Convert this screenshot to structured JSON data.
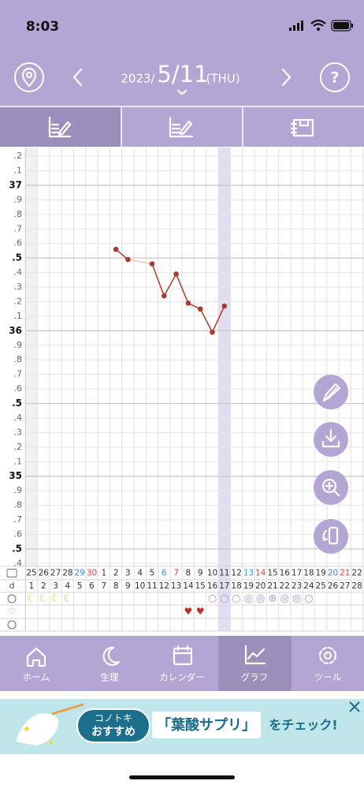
{
  "status_bar": {
    "time": "8:03"
  },
  "header": {
    "year": "2023/",
    "date": "5/11",
    "weekday": "(THU)"
  },
  "chart_data": {
    "type": "line",
    "categories": [
      "25",
      "26",
      "27",
      "28",
      "29",
      "30",
      "1",
      "2",
      "3",
      "4",
      "5",
      "6",
      "7",
      "8",
      "9",
      "10",
      "11",
      "12",
      "13",
      "14",
      "15",
      "16",
      "17",
      "18",
      "19",
      "20",
      "21",
      "22"
    ],
    "category_colors": [
      "#333",
      "#333",
      "#333",
      "#333",
      "#3a8fd6",
      "#e0413a",
      "#333",
      "#333",
      "#333",
      "#333",
      "#333",
      "#3a8fd6",
      "#e0413a",
      "#333",
      "#333",
      "#333",
      "#333",
      "#333",
      "#3a8fd6",
      "#e0413a",
      "#333",
      "#333",
      "#333",
      "#333",
      "#333",
      "#3a8fd6",
      "#e0413a",
      "#333"
    ],
    "cycle_day_label": "d",
    "cycle_days": [
      1,
      2,
      3,
      4,
      5,
      6,
      7,
      8,
      9,
      10,
      11,
      12,
      13,
      14,
      15,
      16,
      17,
      18,
      19,
      20,
      21,
      22,
      23,
      24,
      25,
      26,
      27,
      28
    ],
    "series": [
      {
        "color": "#b0392e",
        "values": [
          null,
          null,
          null,
          null,
          null,
          null,
          null,
          36.56,
          36.49,
          null,
          36.46,
          36.24,
          36.39,
          36.19,
          36.15,
          35.99,
          36.17,
          null,
          null,
          null,
          null,
          null,
          null,
          null,
          null,
          null,
          null,
          null
        ]
      }
    ],
    "gap_color": "#f2c4c4",
    "highlight_index": 16,
    "ylim": [
      34.38,
      37.26
    ],
    "yticks": [
      {
        "value": 37.2,
        "label": ".2"
      },
      {
        "value": 37.1,
        "label": ".1"
      },
      37,
      {
        "value": 36.9,
        "label": ".9"
      },
      {
        "value": 36.8,
        "label": ".8"
      },
      {
        "value": 36.7,
        "label": ".7"
      },
      {
        "value": 36.6,
        "label": ".6"
      },
      {
        "value": 36.5,
        "label": ".5"
      },
      {
        "value": 36.4,
        "label": ".4"
      },
      {
        "value": 36.3,
        "label": ".3"
      },
      {
        "value": 36.2,
        "label": ".2"
      },
      {
        "value": 36.1,
        "label": ".1"
      },
      36,
      {
        "value": 35.9,
        "label": ".9"
      },
      {
        "value": 35.8,
        "label": ".8"
      },
      {
        "value": 35.7,
        "label": ".7"
      },
      {
        "value": 35.6,
        "label": ".6"
      },
      {
        "value": 35.5,
        "label": ".5"
      },
      {
        "value": 35.4,
        "label": ".4"
      },
      {
        "value": 35.3,
        "label": ".3"
      },
      {
        "value": 35.2,
        "label": ".2"
      },
      {
        "value": 35.1,
        "label": ".1"
      },
      35,
      {
        "value": 34.9,
        "label": ".9"
      },
      {
        "value": 34.8,
        "label": ".8"
      },
      {
        "value": 34.7,
        "label": ".7"
      },
      {
        "value": 34.6,
        "label": ".6"
      },
      {
        "value": 34.5,
        "label": ".5"
      },
      {
        "value": 34.4,
        "label": ".4"
      }
    ],
    "grid": true,
    "period_marks": {
      "color": "#e8c53c",
      "symbols": [
        "☾",
        "☾",
        "☾",
        "☾",
        null,
        null,
        null,
        null,
        null,
        null,
        null,
        null,
        null,
        null,
        null,
        null,
        null,
        null,
        null,
        null,
        null,
        null,
        null,
        null,
        null,
        null,
        null,
        null
      ]
    },
    "ovulation_marks": {
      "color": "#a99bd0",
      "symbols": [
        null,
        null,
        null,
        null,
        null,
        null,
        null,
        null,
        null,
        null,
        null,
        null,
        null,
        null,
        null,
        "○",
        "○",
        "○",
        "◎",
        "◎",
        "⊛",
        "◎",
        "◎",
        "○",
        null,
        null,
        null,
        null
      ]
    },
    "heart_marks": {
      "color": "#c0302a",
      "symbols": [
        null,
        null,
        null,
        null,
        null,
        null,
        null,
        null,
        null,
        null,
        null,
        null,
        null,
        "♥",
        "♥",
        null,
        null,
        null,
        null,
        null,
        null,
        null,
        null,
        null,
        null,
        null,
        null,
        null
      ]
    }
  },
  "nav": {
    "items": [
      "ホーム",
      "生理",
      "カレンダー",
      "グラフ",
      "ツール"
    ]
  },
  "ad": {
    "badge_top": "コノトキ",
    "badge_bottom": "おすすめ",
    "headline": "「葉酸サプリ」",
    "tail": "をチェック!"
  }
}
